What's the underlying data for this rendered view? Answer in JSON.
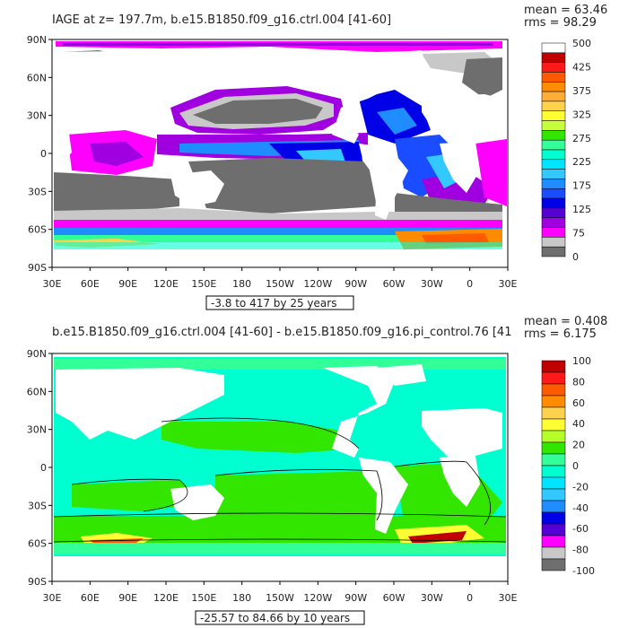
{
  "panels": [
    {
      "title": "IAGE at z= 197.7m, b.e15.B1850.f09_g16.ctrl.004 [41-60]",
      "stats": [
        "mean = 63.46",
        "rms = 98.29"
      ],
      "range_label": "-3.8 to 417 by 25 years",
      "lat_labels": [
        "90N",
        "60N",
        "30N",
        "0",
        "30S",
        "60S",
        "90S"
      ],
      "lon_labels": [
        "30E",
        "60E",
        "90E",
        "120E",
        "150E",
        "180",
        "150W",
        "120W",
        "90W",
        "60W",
        "30W",
        "0",
        "30E"
      ],
      "colorbar_labels": [
        "500",
        "425",
        "375",
        "325",
        "275",
        "225",
        "175",
        "125",
        "75",
        "0"
      ],
      "colorbar_colors": [
        "#ffffff",
        "#c00000",
        "#ff1a1a",
        "#ff5a00",
        "#ff8c00",
        "#ffad33",
        "#ffd24d",
        "#ffff33",
        "#c8ff3c",
        "#33e600",
        "#33ff99",
        "#00ffd0",
        "#00e5ff",
        "#33c8ff",
        "#1f8cff",
        "#1a4dff",
        "#0000e6",
        "#5500d4",
        "#a000e0",
        "#ff00ff",
        "#c8c8c8",
        "#6e6e6e"
      ]
    },
    {
      "title": "b.e15.B1850.f09_g16.ctrl.004 [41-60] - b.e15.B1850.f09_g16.pi_control.76 [41",
      "stats": [
        "mean = 0.408",
        "rms = 6.175"
      ],
      "range_label": "-25.57 to 84.66 by 10 years",
      "lat_labels": [
        "90N",
        "60N",
        "30N",
        "0",
        "30S",
        "60S",
        "90S"
      ],
      "lon_labels": [
        "30E",
        "60E",
        "90E",
        "120E",
        "150E",
        "180",
        "150W",
        "120W",
        "90W",
        "60W",
        "30W",
        "0",
        "30E"
      ],
      "colorbar_labels": [
        "100",
        "80",
        "60",
        "40",
        "20",
        "0",
        "-20",
        "-40",
        "-60",
        "-80",
        "-100"
      ],
      "colorbar_colors": [
        "#c00000",
        "#ff1a1a",
        "#ff5a00",
        "#ff8c00",
        "#ffd24d",
        "#ffff33",
        "#b4ff28",
        "#33e600",
        "#33ff99",
        "#00ffd0",
        "#00e5ff",
        "#33c8ff",
        "#1f8cff",
        "#0000e6",
        "#5500d4",
        "#ff00ff",
        "#c8c8c8",
        "#6e6e6e"
      ]
    }
  ]
}
